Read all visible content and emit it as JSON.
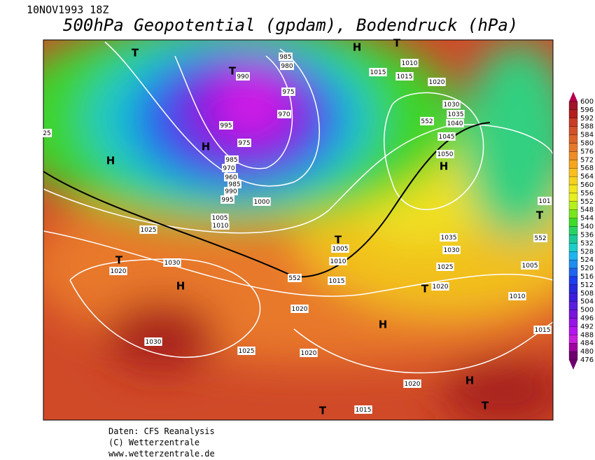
{
  "header": {
    "date": "10NOV1993 18Z",
    "title": "500hPa Geopotential (gpdam), Bodendruck (hPa)"
  },
  "map_labels": [
    "T",
    "H",
    "T",
    1010,
    1015,
    1015,
    1020,
    985,
    980,
    "T",
    990,
    975,
    970,
    995,
    975,
    "H",
    1030,
    1035,
    1040,
    552,
    1045,
    1050,
    "H",
    985,
    970,
    960,
    985,
    990,
    995,
    1000,
    "H",
    25,
    1005,
    1010,
    1025,
    1035,
    1030,
    552,
    101,
    "T",
    1025,
    1005,
    "T",
    1020,
    1030,
    "H",
    "T",
    1005,
    1010,
    552,
    1015,
    "T",
    1020,
    1010,
    1020,
    "H",
    1015,
    1030,
    1025,
    1020,
    1020,
    "H",
    "T",
    "T",
    1015
  ],
  "colorbar": {
    "labels": [
      600,
      596,
      592,
      588,
      584,
      580,
      576,
      572,
      568,
      564,
      560,
      556,
      552,
      548,
      544,
      540,
      536,
      532,
      528,
      524,
      520,
      516,
      512,
      508,
      504,
      500,
      496,
      492,
      488,
      484,
      480,
      476
    ],
    "colors": [
      "#b4004b",
      "#a0142a",
      "#b41e1e",
      "#c83c28",
      "#d2502a",
      "#dc642a",
      "#e6782a",
      "#f08c28",
      "#f5a51e",
      "#fabe1e",
      "#f5d21e",
      "#f0e61e",
      "#e6f01e",
      "#b4f01e",
      "#78e61e",
      "#3cdc28",
      "#28d264",
      "#1ec896",
      "#1ecdc8",
      "#1eb4f0",
      "#1e8cf0",
      "#1e64f0",
      "#1e3cf0",
      "#2828dc",
      "#3c1edc",
      "#5a1edc",
      "#7814dc",
      "#9614e6",
      "#b414f0",
      "#c81edc",
      "#a000a0",
      "#6e006e"
    ]
  },
  "footer": {
    "source": "Daten: CFS Reanalysis",
    "copyright": "(C) Wetterzentrale",
    "url": "www.wetterzentrale.de"
  }
}
